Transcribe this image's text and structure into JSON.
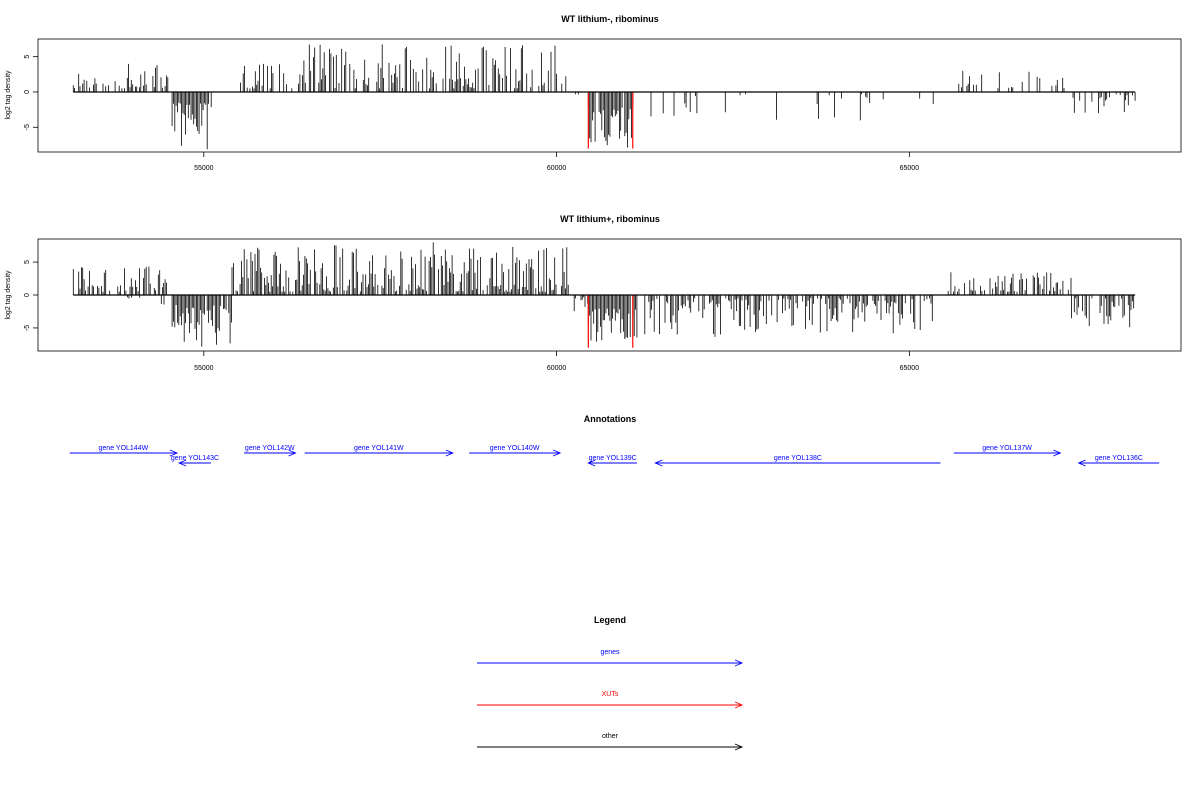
{
  "colors": {
    "signal": "#000000",
    "xut": "#ff0000",
    "gene": "#0000ff",
    "other": "#000000",
    "frame": "#000000"
  },
  "chart_data": [
    {
      "type": "bar",
      "title": "WT lithium-, ribominus",
      "ylabel": "log2 tag density",
      "xlim": [
        52650,
        68850
      ],
      "ylim": [
        -8.5,
        7.5
      ],
      "xticks": [
        55000,
        60000,
        65000
      ],
      "xtick_labels": [
        "55000",
        "60000",
        "65000"
      ],
      "yticks": [
        -5,
        0,
        5
      ],
      "ytick_labels": [
        "-5",
        "0",
        "5"
      ],
      "grid": false,
      "seed": 11,
      "segments": [
        {
          "start": 53150,
          "end": 54500,
          "strand": "+",
          "min": 0.5,
          "max": 4.0,
          "density": 0.55
        },
        {
          "start": 54550,
          "end": 55120,
          "strand": "-",
          "min": 1.5,
          "max": 8.5,
          "density": 0.95
        },
        {
          "start": 55520,
          "end": 60150,
          "strand": "+",
          "min": 0.5,
          "max": 6.8,
          "density": 0.6
        },
        {
          "start": 60250,
          "end": 60450,
          "strand": "-",
          "min": 0.3,
          "max": 2.5,
          "density": 0.5
        },
        {
          "start": 60450,
          "end": 61100,
          "strand": "-",
          "min": 2.0,
          "max": 8.0,
          "density": 0.95
        },
        {
          "start": 61300,
          "end": 65350,
          "strand": "-",
          "min": 0.3,
          "max": 4.5,
          "density": 0.16
        },
        {
          "start": 65700,
          "end": 67200,
          "strand": "+",
          "min": 0.5,
          "max": 3.2,
          "density": 0.28
        },
        {
          "start": 67300,
          "end": 68200,
          "strand": "-",
          "min": 0.3,
          "max": 3.0,
          "density": 0.3
        }
      ],
      "highlights": [
        {
          "x": 60450,
          "value": -8.0
        },
        {
          "x": 61080,
          "value": -8.0
        }
      ]
    },
    {
      "type": "bar",
      "title": "WT lithium+, ribominus",
      "ylabel": "log2 tag density",
      "xlim": [
        52650,
        68850
      ],
      "ylim": [
        -8.5,
        8.5
      ],
      "xticks": [
        55000,
        60000,
        65000
      ],
      "xtick_labels": [
        "55000",
        "60000",
        "65000"
      ],
      "yticks": [
        -5,
        0,
        5
      ],
      "ytick_labels": [
        "-5",
        "0",
        "5"
      ],
      "grid": false,
      "seed": 29,
      "segments": [
        {
          "start": 53150,
          "end": 54500,
          "strand": "+",
          "min": 0.5,
          "max": 4.5,
          "density": 0.6
        },
        {
          "start": 53900,
          "end": 54500,
          "strand": "-",
          "min": 0.3,
          "max": 2.0,
          "density": 0.25
        },
        {
          "start": 54550,
          "end": 55400,
          "strand": "-",
          "min": 1.5,
          "max": 8.0,
          "density": 0.95
        },
        {
          "start": 55400,
          "end": 60200,
          "strand": "+",
          "min": 0.5,
          "max": 8.0,
          "density": 0.8
        },
        {
          "start": 60250,
          "end": 60450,
          "strand": "-",
          "min": 0.3,
          "max": 2.5,
          "density": 0.5
        },
        {
          "start": 60450,
          "end": 61150,
          "strand": "-",
          "min": 2.0,
          "max": 8.0,
          "density": 0.95
        },
        {
          "start": 61250,
          "end": 65350,
          "strand": "-",
          "min": 0.5,
          "max": 6.5,
          "density": 0.7
        },
        {
          "start": 65550,
          "end": 67300,
          "strand": "+",
          "min": 0.5,
          "max": 3.5,
          "density": 0.65
        },
        {
          "start": 67300,
          "end": 68200,
          "strand": "-",
          "min": 0.5,
          "max": 5.0,
          "density": 0.6
        }
      ],
      "highlights": [
        {
          "x": 60450,
          "value": -8.0
        },
        {
          "x": 61080,
          "value": -8.0
        }
      ]
    }
  ],
  "annotations": {
    "title": "Annotations",
    "genes": [
      {
        "name": "gene YOL144W",
        "start": 53100,
        "end": 54620,
        "strand": "+"
      },
      {
        "name": "gene YOL143C",
        "start": 54650,
        "end": 55100,
        "strand": "-"
      },
      {
        "name": "gene YOL142W",
        "start": 55570,
        "end": 56300,
        "strand": "+"
      },
      {
        "name": "gene YOL141W",
        "start": 56430,
        "end": 58530,
        "strand": "+"
      },
      {
        "name": "gene YOL140W",
        "start": 58760,
        "end": 60050,
        "strand": "+"
      },
      {
        "name": "gene YOL139C",
        "start": 60450,
        "end": 61140,
        "strand": "-"
      },
      {
        "name": "gene YOL138C",
        "start": 61400,
        "end": 65440,
        "strand": "-"
      },
      {
        "name": "gene YOL137W",
        "start": 65630,
        "end": 67140,
        "strand": "+"
      },
      {
        "name": "gene YOL136C",
        "start": 67400,
        "end": 68540,
        "strand": "-"
      }
    ]
  },
  "legend": {
    "title": "Legend",
    "items": [
      {
        "label": "genes",
        "color": "#0000ff"
      },
      {
        "label": "XUTs",
        "color": "#ff0000"
      },
      {
        "label": "other",
        "color": "#000000"
      }
    ]
  }
}
